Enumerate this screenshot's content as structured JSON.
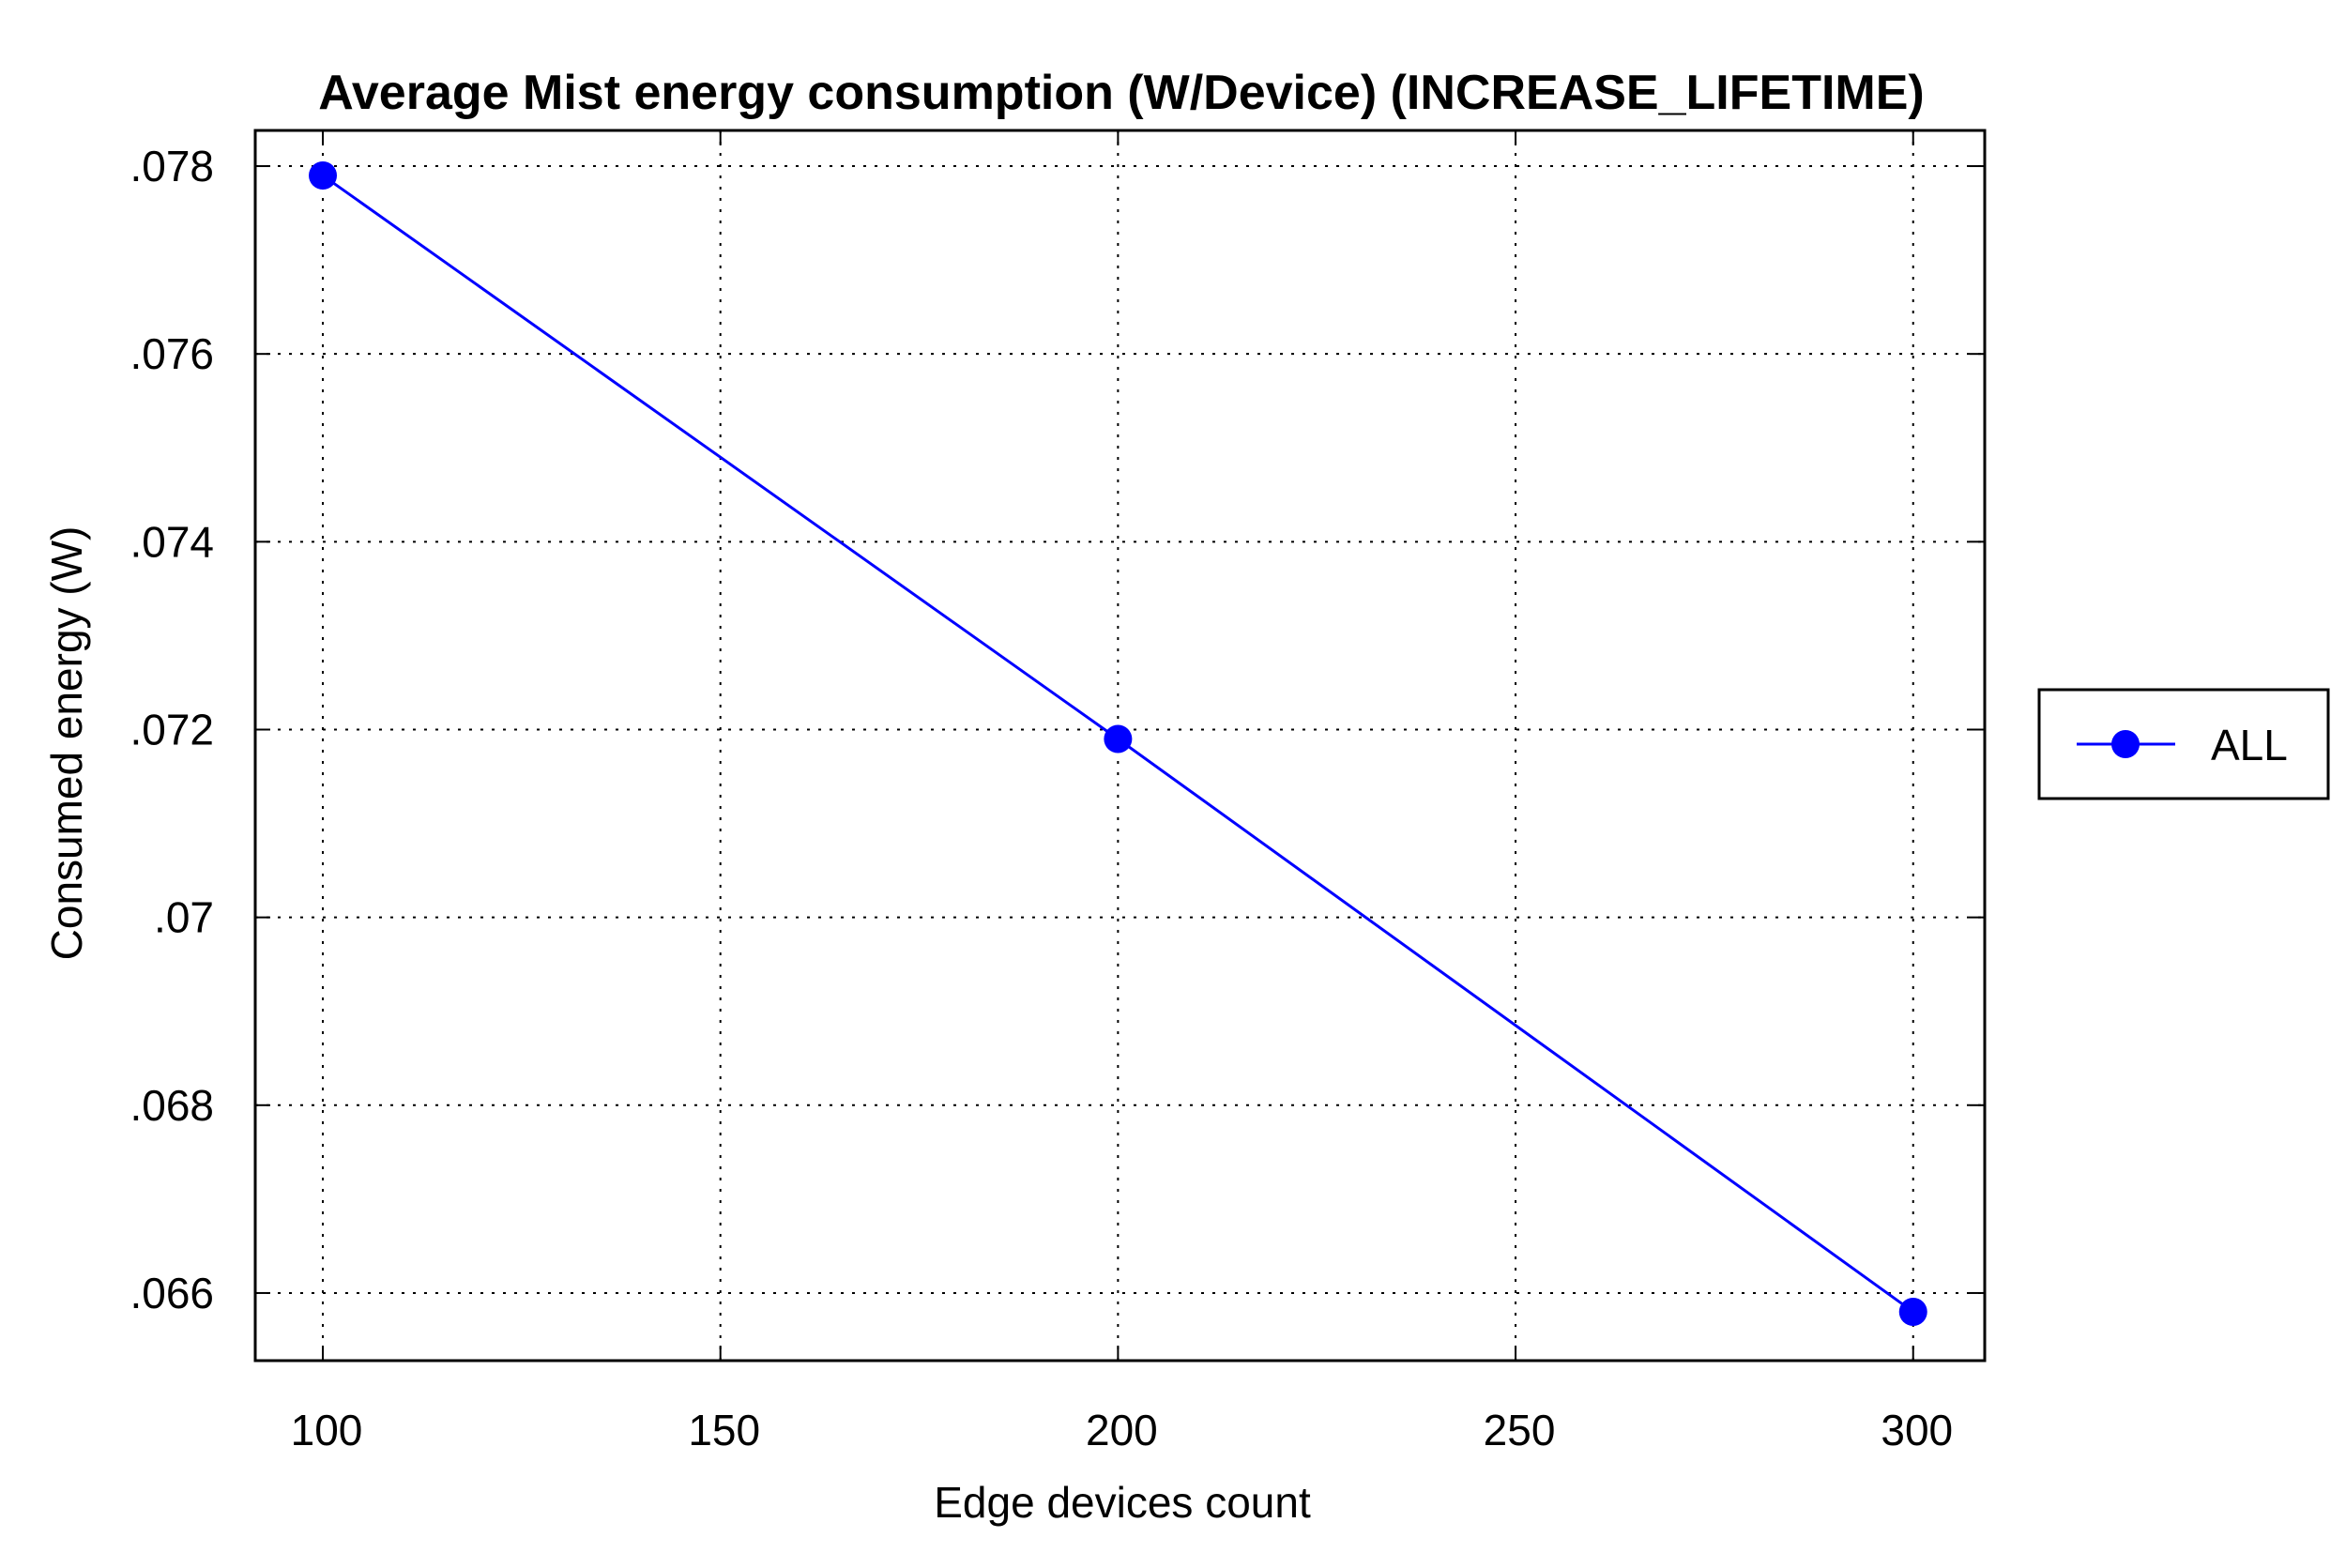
{
  "chart_data": {
    "type": "line",
    "title": "Average Mist energy consumption (W/Device) (INCREASE_LIFETIME)",
    "xlabel": "Edge devices count",
    "ylabel": "Consumed energy (W)",
    "x_ticks": [
      100,
      150,
      200,
      250,
      300
    ],
    "x_tick_labels": [
      "100",
      "150",
      "200",
      "250",
      "300"
    ],
    "y_ticks": [
      0.066,
      0.068,
      0.07,
      0.072,
      0.074,
      0.076,
      0.078
    ],
    "y_tick_labels": [
      ".066",
      ".068",
      ".07",
      ".072",
      ".074",
      ".076",
      ".078"
    ],
    "xlim": [
      91.5,
      309
    ],
    "ylim": [
      0.06528,
      0.07838
    ],
    "grid": true,
    "legend_position": "right",
    "series": [
      {
        "name": "ALL",
        "color": "#0000ff",
        "marker": "circle",
        "x": [
          100,
          200,
          300
        ],
        "y": [
          0.0779,
          0.0719,
          0.0658
        ]
      }
    ]
  }
}
